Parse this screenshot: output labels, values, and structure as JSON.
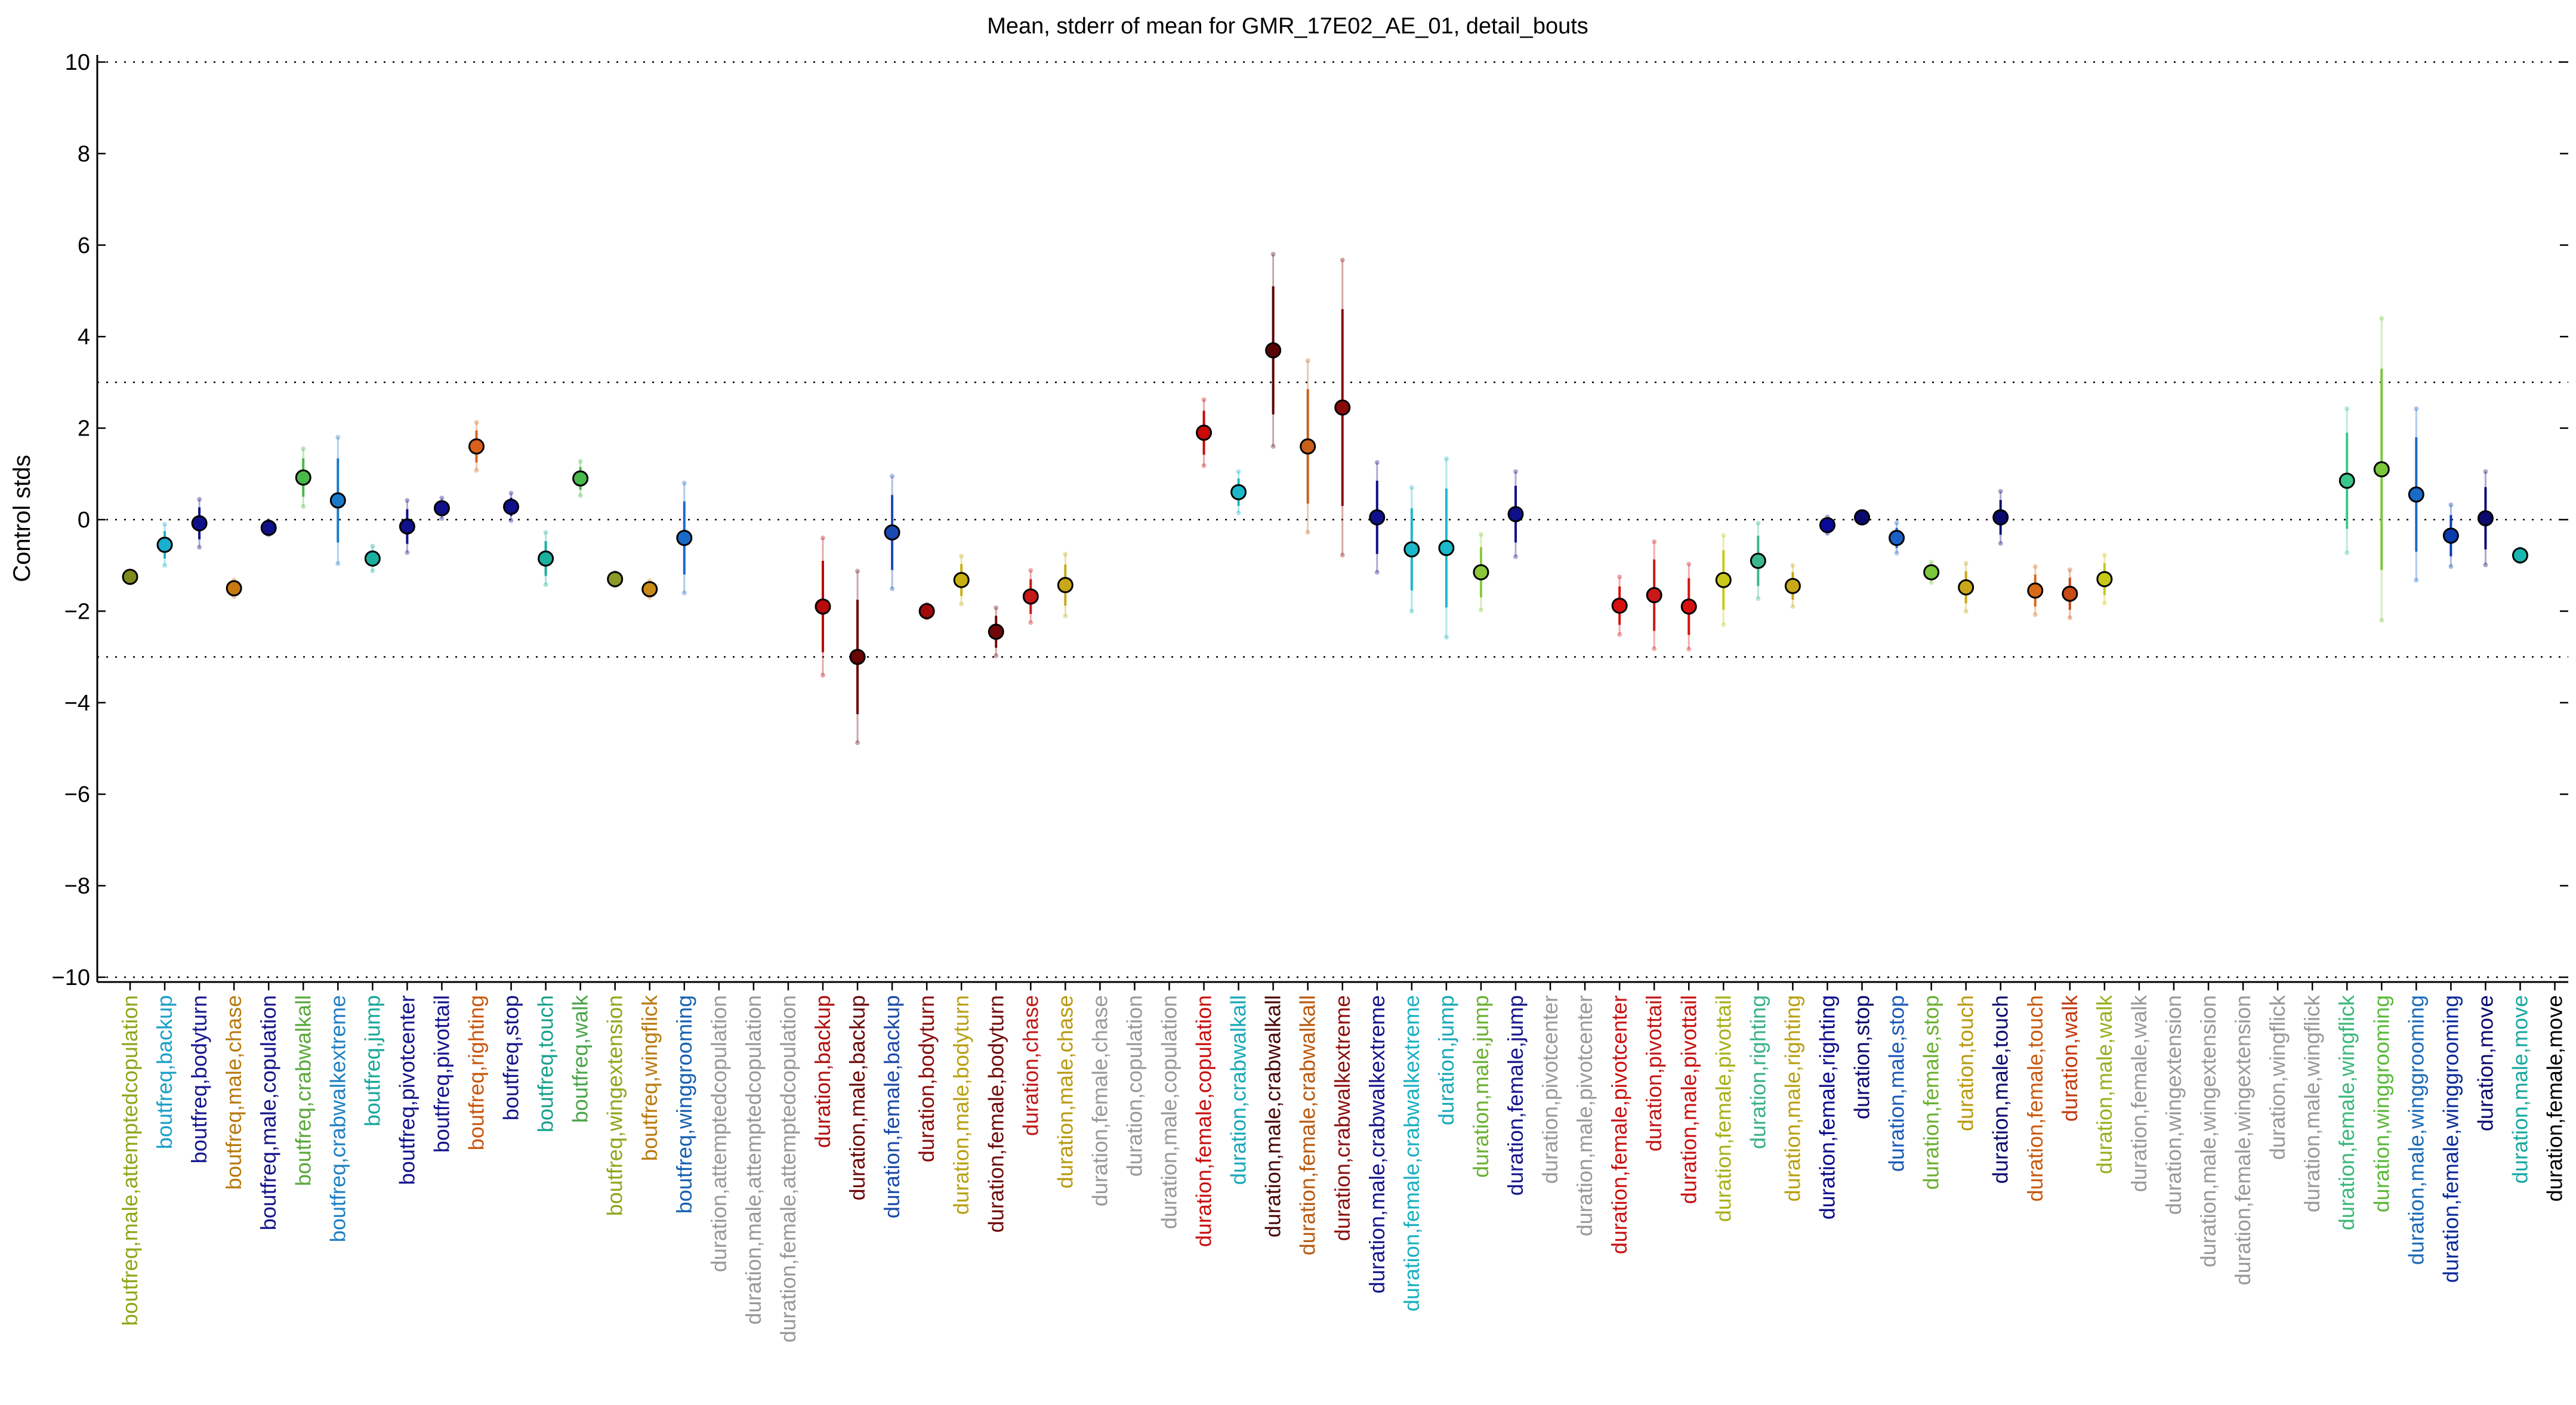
{
  "chart_data": {
    "type": "scatter",
    "title": "Mean, stderr of mean for GMR_17E02_AE_01, detail_bouts",
    "ylabel": "Control stds",
    "ylim": [
      -10,
      10
    ],
    "yticks": [
      10,
      8,
      6,
      4,
      2,
      0,
      -2,
      -4,
      -6,
      -8,
      -10
    ],
    "reference_lines": [
      10,
      3,
      0,
      -3,
      -10
    ],
    "categories": [
      "boutfreq,male,attemptedcopulation",
      "boutfreq,backup",
      "boutfreq,bodyturn",
      "boutfreq,male,chase",
      "boutfreq,male,copulation",
      "boutfreq,crabwalkall",
      "boutfreq,crabwalkextreme",
      "boutfreq,jump",
      "boutfreq,pivotcenter",
      "boutfreq,pivottail",
      "boutfreq,righting",
      "boutfreq,stop",
      "boutfreq,touch",
      "boutfreq,walk",
      "boutfreq,wingextension",
      "boutfreq,wingflick",
      "boutfreq,winggrooming",
      "duration,attemptedcopulation",
      "duration,male,attemptedcopulation",
      "duration,female,attemptedcopulation",
      "duration,backup",
      "duration,male,backup",
      "duration,female,backup",
      "duration,bodyturn",
      "duration,male,bodyturn",
      "duration,female,bodyturn",
      "duration,chase",
      "duration,male,chase",
      "duration,female,chase",
      "duration,copulation",
      "duration,male,copulation",
      "duration,female,copulation",
      "duration,crabwalkall",
      "duration,male,crabwalkall",
      "duration,female,crabwalkall",
      "duration,crabwalkextreme",
      "duration,male,crabwalkextreme",
      "duration,female,crabwalkextreme",
      "duration,jump",
      "duration,male,jump",
      "duration,female,jump",
      "duration,pivotcenter",
      "duration,male,pivotcenter",
      "duration,female,pivotcenter",
      "duration,pivottail",
      "duration,male,pivottail",
      "duration,female,pivottail",
      "duration,righting",
      "duration,male,righting",
      "duration,female,righting",
      "duration,stop",
      "duration,male,stop",
      "duration,female,stop",
      "duration,touch",
      "duration,male,touch",
      "duration,female,touch",
      "duration,walk",
      "duration,male,walk",
      "duration,female,walk",
      "duration,wingextension",
      "duration,male,wingextension",
      "duration,female,wingextension",
      "duration,wingflick",
      "duration,male,wingflick",
      "duration,female,wingflick",
      "duration,winggrooming",
      "duration,male,winggrooming",
      "duration,female,winggrooming",
      "duration,move",
      "duration,male,move",
      "duration,female,move"
    ],
    "label_colors": [
      "#8fa61c",
      "#1a9fc9",
      "#16168f",
      "#b87a10",
      "#14148a",
      "#5aa83a",
      "#1f7fc2",
      "#16a89a",
      "#14148a",
      "#14148a",
      "#c8560e",
      "#14148a",
      "#18a08c",
      "#4aa44a",
      "#8fa61c",
      "#b87a10",
      "#1560b0",
      "#999999",
      "#999999",
      "#999999",
      "#b01010",
      "#6a0808",
      "#1a4aa8",
      "#8a0a0a",
      "#b8a010",
      "#6e0a0a",
      "#c01818",
      "#b89a10",
      "#999999",
      "#999999",
      "#999999",
      "#c81010",
      "#18a8b8",
      "#4a0808",
      "#b85a10",
      "#8a1010",
      "#14148a",
      "#1ab0c0",
      "#18a8b8",
      "#6ab030",
      "#14148a",
      "#999999",
      "#999999",
      "#c81010",
      "#c01818",
      "#c81010",
      "#a8b018",
      "#3ab08a",
      "#b8a010",
      "#0a0a8a",
      "#0a0a6e",
      "#1a5ab8",
      "#6ab030",
      "#b89a10",
      "#0a0a6e",
      "#c85a10",
      "#c03a10",
      "#98b020",
      "#999999",
      "#999999",
      "#999999",
      "#999999",
      "#999999",
      "#999999",
      "#3ab87a",
      "#5ab83a",
      "#1a6ab8",
      "#0a2a9a",
      "#0a0a6e",
      "#18a8a0"
    ],
    "series": [
      {
        "values": [
          -1.25,
          -0.55,
          -0.08,
          -1.5,
          -0.18,
          0.92,
          0.42,
          -0.85,
          -0.15,
          0.25,
          1.6,
          0.28,
          -0.85,
          0.9,
          -1.3,
          -1.52,
          -0.4,
          null,
          null,
          null,
          -1.9,
          -3.0,
          -0.28,
          -2.0,
          -1.32,
          -2.45,
          -1.68,
          -1.43,
          null,
          null,
          null,
          1.9,
          0.6,
          3.7,
          1.6,
          2.45,
          0.05,
          -0.65,
          -0.62,
          -1.15,
          0.12,
          null,
          null,
          -1.88,
          -1.65,
          -1.9,
          -1.32,
          -0.9,
          -1.45,
          -0.12,
          0.05,
          -0.4,
          -1.15,
          -1.48,
          0.05,
          -1.55,
          -1.62,
          -1.3,
          null,
          null,
          null,
          null,
          null,
          null,
          0.85,
          1.1,
          0.55,
          -0.35,
          0.03,
          -0.78
        ],
        "stderr": [
          0.08,
          0.3,
          0.35,
          0.12,
          0.1,
          0.42,
          0.92,
          0.18,
          0.38,
          0.15,
          0.35,
          0.2,
          0.38,
          0.25,
          0.1,
          0.12,
          0.8,
          null,
          null,
          null,
          1.0,
          1.25,
          0.82,
          0.1,
          0.35,
          0.35,
          0.38,
          0.45,
          null,
          null,
          null,
          0.48,
          0.3,
          1.4,
          1.25,
          2.15,
          0.8,
          0.9,
          1.3,
          0.55,
          0.62,
          null,
          null,
          0.42,
          0.78,
          0.62,
          0.65,
          0.55,
          0.3,
          0.12,
          0.08,
          0.22,
          0.15,
          0.35,
          0.38,
          0.35,
          0.35,
          0.35,
          null,
          null,
          null,
          null,
          null,
          null,
          1.05,
          2.2,
          1.25,
          0.45,
          0.68,
          0.1
        ],
        "marker_colors": [
          "#7e8a1c",
          "#1aaecf",
          "#10108a",
          "#c87a10",
          "#10108a",
          "#4ab84a",
          "#1a7ac8",
          "#1ab0a0",
          "#10108a",
          "#10108a",
          "#d8601a",
          "#10108a",
          "#1ab0a0",
          "#4ab84a",
          "#8a9a28",
          "#c88a18",
          "#1a6ac8",
          null,
          null,
          null,
          "#b80a0a",
          "#6a0505",
          "#1a4ab0",
          "#a00a0a",
          "#c8b010",
          "#700808",
          "#c81818",
          "#c8a818",
          null,
          null,
          null,
          "#c80a0a",
          "#1ab8c8",
          "#5a0505",
          "#c8601a",
          "#8a0a0a",
          "#10108a",
          "#1ab8c8",
          "#1ab8c8",
          "#8ac83a",
          "#10108a",
          null,
          null,
          "#d81010",
          "#c81818",
          "#d81010",
          "#c8c818",
          "#3ab88a",
          "#c8a818",
          "#0a0a9a",
          "#0a0a6e",
          "#1a60c8",
          "#7ac83a",
          "#c8a818",
          "#0a0a6e",
          "#d86a18",
          "#c84a18",
          "#c8c818",
          null,
          null,
          null,
          null,
          null,
          null,
          "#3ac88a",
          "#7ac83a",
          "#1a6ac8",
          "#0a3ab0",
          "#0a0a6e",
          "#18b8b0"
        ]
      }
    ]
  }
}
